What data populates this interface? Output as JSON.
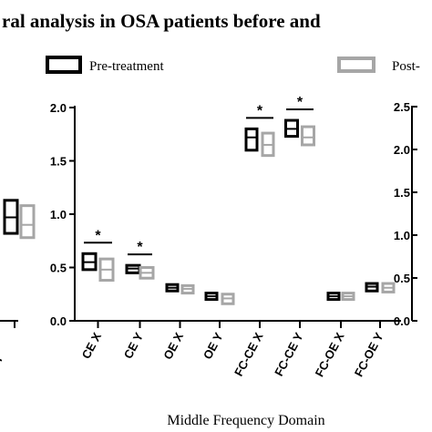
{
  "chart_data": {
    "type": "box",
    "title": "ral analysis in OSA   patients before and",
    "xlabel": "Middle Frequency Domain",
    "ylim": [
      0,
      2.0
    ],
    "yticks": [
      "0.0",
      "0.5",
      "1.0",
      "1.5",
      "2.0"
    ],
    "right_axis_ticks": [
      "0.0",
      "0.5",
      "1.0",
      "1.5",
      "2.0",
      "2.5"
    ],
    "left_partial_label": "E Y",
    "categories": [
      "CE X",
      "CE Y",
      "OE X",
      "OE Y",
      "FC-CE X",
      "FC-CE Y",
      "FC-OE X",
      "FC-OE Y"
    ],
    "significance": [
      "*",
      "*",
      "",
      "",
      "*",
      "*",
      "",
      ""
    ],
    "legend_position": "top",
    "series": [
      {
        "name": "Pre-treatment",
        "color": "#000000",
        "boxes": [
          {
            "low": 0.48,
            "mid": 0.55,
            "high": 0.63
          },
          {
            "low": 0.45,
            "mid": 0.49,
            "high": 0.52
          },
          {
            "low": 0.28,
            "mid": 0.31,
            "high": 0.34
          },
          {
            "low": 0.2,
            "mid": 0.23,
            "high": 0.26
          },
          {
            "low": 1.6,
            "mid": 1.72,
            "high": 1.8
          },
          {
            "low": 1.73,
            "mid": 1.8,
            "high": 1.88
          },
          {
            "low": 0.2,
            "mid": 0.23,
            "high": 0.26
          },
          {
            "low": 0.28,
            "mid": 0.32,
            "high": 0.35
          }
        ]
      },
      {
        "name": "Post-",
        "color": "#a6a6a6",
        "boxes": [
          {
            "low": 0.38,
            "mid": 0.48,
            "high": 0.58
          },
          {
            "low": 0.4,
            "mid": 0.45,
            "high": 0.5
          },
          {
            "low": 0.26,
            "mid": 0.3,
            "high": 0.33
          },
          {
            "low": 0.16,
            "mid": 0.21,
            "high": 0.25
          },
          {
            "low": 1.55,
            "mid": 1.65,
            "high": 1.76
          },
          {
            "low": 1.65,
            "mid": 1.72,
            "high": 1.82
          },
          {
            "low": 0.2,
            "mid": 0.23,
            "high": 0.26
          },
          {
            "low": 0.27,
            "mid": 0.31,
            "high": 0.35
          }
        ]
      }
    ],
    "left_partial_boxes": [
      {
        "series": 0,
        "low": 0.82,
        "mid": 0.97,
        "high": 1.13
      },
      {
        "series": 1,
        "low": 0.78,
        "mid": 0.9,
        "high": 1.08
      }
    ]
  }
}
